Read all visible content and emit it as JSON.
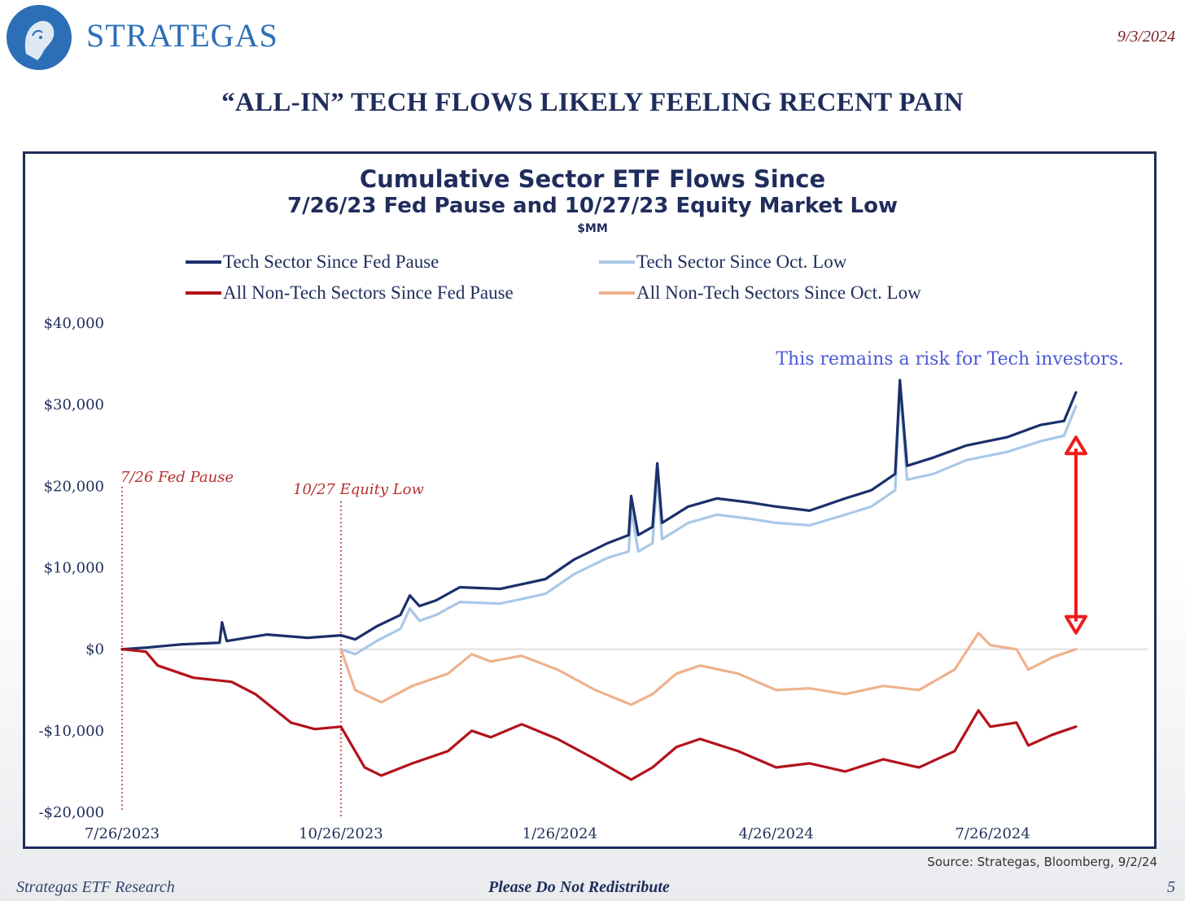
{
  "header": {
    "brand": "STRATEGAS",
    "date": "9/3/2024",
    "slide_title": "“ALL-IN” TECH FLOWS LIKELY FEELING RECENT PAIN"
  },
  "footer": {
    "left": "Strategas ETF Research",
    "center": "Please Do Not Redistribute",
    "page": "5",
    "source": "Source: Strategas, Bloomberg, 9/2/24"
  },
  "colors": {
    "navy": "#1f2d5c",
    "tech_fed": "#1b2f6b",
    "tech_oct": "#a9c8e6",
    "nontech_fed": "#b3121b",
    "nontech_oct": "#eeb28e",
    "annotation_red": "#b72f2f",
    "arrow_red": "#ee1c1c",
    "note_blue": "#4a59d4"
  },
  "chart_data": {
    "type": "line",
    "title": "Cumulative Sector ETF Flows Since",
    "subtitle": "7/26/23 Fed Pause and 10/27/23 Equity Market Low",
    "unit": "$MM",
    "ylim": [
      -20000,
      40000
    ],
    "y_ticks": [
      40000,
      30000,
      20000,
      10000,
      0,
      -10000,
      -20000
    ],
    "y_tick_labels": [
      "$40,000",
      "$30,000",
      "$20,000",
      "$10,000",
      "$0",
      "-$10,000",
      "-$20,000"
    ],
    "x_tick_labels": [
      "7/26/2023",
      "10/26/2023",
      "1/26/2024",
      "4/26/2024",
      "7/26/2024"
    ],
    "x_tick_dates": [
      "2023-07-26",
      "2023-10-26",
      "2024-01-26",
      "2024-04-26",
      "2024-07-26"
    ],
    "xlim": [
      "2023-07-26",
      "2024-08-30"
    ],
    "legend": {
      "placement": "top"
    },
    "series": [
      {
        "name": "Tech Sector Since Fed Pause",
        "color": "#1b2f6b",
        "points": [
          [
            "2023-07-26",
            0
          ],
          [
            "2023-08-05",
            200
          ],
          [
            "2023-08-20",
            600
          ],
          [
            "2023-09-05",
            800
          ],
          [
            "2023-09-06",
            3300
          ],
          [
            "2023-09-08",
            1000
          ],
          [
            "2023-09-25",
            1800
          ],
          [
            "2023-10-12",
            1400
          ],
          [
            "2023-10-26",
            1700
          ],
          [
            "2023-11-01",
            1200
          ],
          [
            "2023-11-10",
            2800
          ],
          [
            "2023-11-20",
            4200
          ],
          [
            "2023-11-24",
            6600
          ],
          [
            "2023-11-28",
            5300
          ],
          [
            "2023-12-05",
            6000
          ],
          [
            "2023-12-15",
            7600
          ],
          [
            "2024-01-01",
            7400
          ],
          [
            "2024-01-20",
            8600
          ],
          [
            "2024-02-01",
            11000
          ],
          [
            "2024-02-15",
            13000
          ],
          [
            "2024-02-24",
            14000
          ],
          [
            "2024-02-25",
            18800
          ],
          [
            "2024-02-28",
            14000
          ],
          [
            "2024-03-05",
            15000
          ],
          [
            "2024-03-07",
            22800
          ],
          [
            "2024-03-09",
            15500
          ],
          [
            "2024-03-20",
            17500
          ],
          [
            "2024-04-01",
            18500
          ],
          [
            "2024-04-15",
            18000
          ],
          [
            "2024-04-26",
            17500
          ],
          [
            "2024-05-10",
            17000
          ],
          [
            "2024-05-25",
            18500
          ],
          [
            "2024-06-05",
            19500
          ],
          [
            "2024-06-15",
            21500
          ],
          [
            "2024-06-17",
            33000
          ],
          [
            "2024-06-20",
            22500
          ],
          [
            "2024-07-01",
            23500
          ],
          [
            "2024-07-15",
            25000
          ],
          [
            "2024-08-01",
            26000
          ],
          [
            "2024-08-15",
            27500
          ],
          [
            "2024-08-25",
            28000
          ],
          [
            "2024-08-30",
            31500
          ]
        ]
      },
      {
        "name": "Tech Sector Since Oct. Low",
        "color": "#a9c8e6",
        "points": [
          [
            "2023-10-26",
            0
          ],
          [
            "2023-11-01",
            -600
          ],
          [
            "2023-11-10",
            1000
          ],
          [
            "2023-11-20",
            2500
          ],
          [
            "2023-11-24",
            5000
          ],
          [
            "2023-11-28",
            3500
          ],
          [
            "2023-12-05",
            4200
          ],
          [
            "2023-12-15",
            5800
          ],
          [
            "2024-01-01",
            5600
          ],
          [
            "2024-01-20",
            6800
          ],
          [
            "2024-02-01",
            9200
          ],
          [
            "2024-02-15",
            11200
          ],
          [
            "2024-02-24",
            12000
          ],
          [
            "2024-02-25",
            17200
          ],
          [
            "2024-02-28",
            12000
          ],
          [
            "2024-03-05",
            13000
          ],
          [
            "2024-03-07",
            21500
          ],
          [
            "2024-03-09",
            13500
          ],
          [
            "2024-03-20",
            15500
          ],
          [
            "2024-04-01",
            16500
          ],
          [
            "2024-04-15",
            16000
          ],
          [
            "2024-04-26",
            15500
          ],
          [
            "2024-05-10",
            15200
          ],
          [
            "2024-05-25",
            16500
          ],
          [
            "2024-06-05",
            17500
          ],
          [
            "2024-06-15",
            19500
          ],
          [
            "2024-06-17",
            32000
          ],
          [
            "2024-06-20",
            20800
          ],
          [
            "2024-07-01",
            21500
          ],
          [
            "2024-07-15",
            23200
          ],
          [
            "2024-08-01",
            24200
          ],
          [
            "2024-08-15",
            25500
          ],
          [
            "2024-08-25",
            26200
          ],
          [
            "2024-08-30",
            29800
          ]
        ]
      },
      {
        "name": "All Non-Tech Sectors Since Fed Pause",
        "color": "#b3121b",
        "points": [
          [
            "2023-07-26",
            0
          ],
          [
            "2023-08-05",
            -300
          ],
          [
            "2023-08-10",
            -2000
          ],
          [
            "2023-08-25",
            -3500
          ],
          [
            "2023-09-10",
            -4000
          ],
          [
            "2023-09-20",
            -5500
          ],
          [
            "2023-10-05",
            -9000
          ],
          [
            "2023-10-15",
            -9800
          ],
          [
            "2023-10-26",
            -9500
          ],
          [
            "2023-11-05",
            -14500
          ],
          [
            "2023-11-12",
            -15500
          ],
          [
            "2023-11-25",
            -14000
          ],
          [
            "2023-12-10",
            -12500
          ],
          [
            "2023-12-20",
            -10000
          ],
          [
            "2023-12-28",
            -10800
          ],
          [
            "2024-01-10",
            -9200
          ],
          [
            "2024-01-25",
            -11000
          ],
          [
            "2024-02-10",
            -13500
          ],
          [
            "2024-02-25",
            -16000
          ],
          [
            "2024-03-05",
            -14500
          ],
          [
            "2024-03-15",
            -12000
          ],
          [
            "2024-03-25",
            -11000
          ],
          [
            "2024-04-10",
            -12500
          ],
          [
            "2024-04-26",
            -14500
          ],
          [
            "2024-05-10",
            -14000
          ],
          [
            "2024-05-25",
            -15000
          ],
          [
            "2024-06-10",
            -13500
          ],
          [
            "2024-06-25",
            -14500
          ],
          [
            "2024-07-10",
            -12500
          ],
          [
            "2024-07-20",
            -7500
          ],
          [
            "2024-07-25",
            -9500
          ],
          [
            "2024-08-05",
            -9000
          ],
          [
            "2024-08-10",
            -11800
          ],
          [
            "2024-08-20",
            -10500
          ],
          [
            "2024-08-30",
            -9500
          ]
        ]
      },
      {
        "name": "All Non-Tech Sectors Since Oct. Low",
        "color": "#eeb28e",
        "points": [
          [
            "2023-10-26",
            0
          ],
          [
            "2023-11-01",
            -5000
          ],
          [
            "2023-11-12",
            -6500
          ],
          [
            "2023-11-25",
            -4500
          ],
          [
            "2023-12-10",
            -3000
          ],
          [
            "2023-12-20",
            -600
          ],
          [
            "2023-12-28",
            -1500
          ],
          [
            "2024-01-10",
            -800
          ],
          [
            "2024-01-25",
            -2500
          ],
          [
            "2024-02-10",
            -5000
          ],
          [
            "2024-02-25",
            -6800
          ],
          [
            "2024-03-05",
            -5500
          ],
          [
            "2024-03-15",
            -3000
          ],
          [
            "2024-03-25",
            -2000
          ],
          [
            "2024-04-10",
            -3000
          ],
          [
            "2024-04-26",
            -5000
          ],
          [
            "2024-05-10",
            -4800
          ],
          [
            "2024-05-25",
            -5500
          ],
          [
            "2024-06-10",
            -4500
          ],
          [
            "2024-06-25",
            -5000
          ],
          [
            "2024-07-10",
            -2500
          ],
          [
            "2024-07-20",
            2000
          ],
          [
            "2024-07-25",
            500
          ],
          [
            "2024-08-05",
            0
          ],
          [
            "2024-08-10",
            -2500
          ],
          [
            "2024-08-20",
            -1000
          ],
          [
            "2024-08-30",
            0
          ]
        ]
      }
    ],
    "annotations": {
      "fed_pause": {
        "label": "7/26 Fed Pause",
        "date": "2023-07-26"
      },
      "equity_low": {
        "label": "10/27 Equity Low",
        "date": "2023-10-26"
      },
      "note": "This remains a risk for Tech investors.",
      "arrow": {
        "date": "2024-08-30",
        "from": 26000,
        "to": 2000
      }
    }
  }
}
